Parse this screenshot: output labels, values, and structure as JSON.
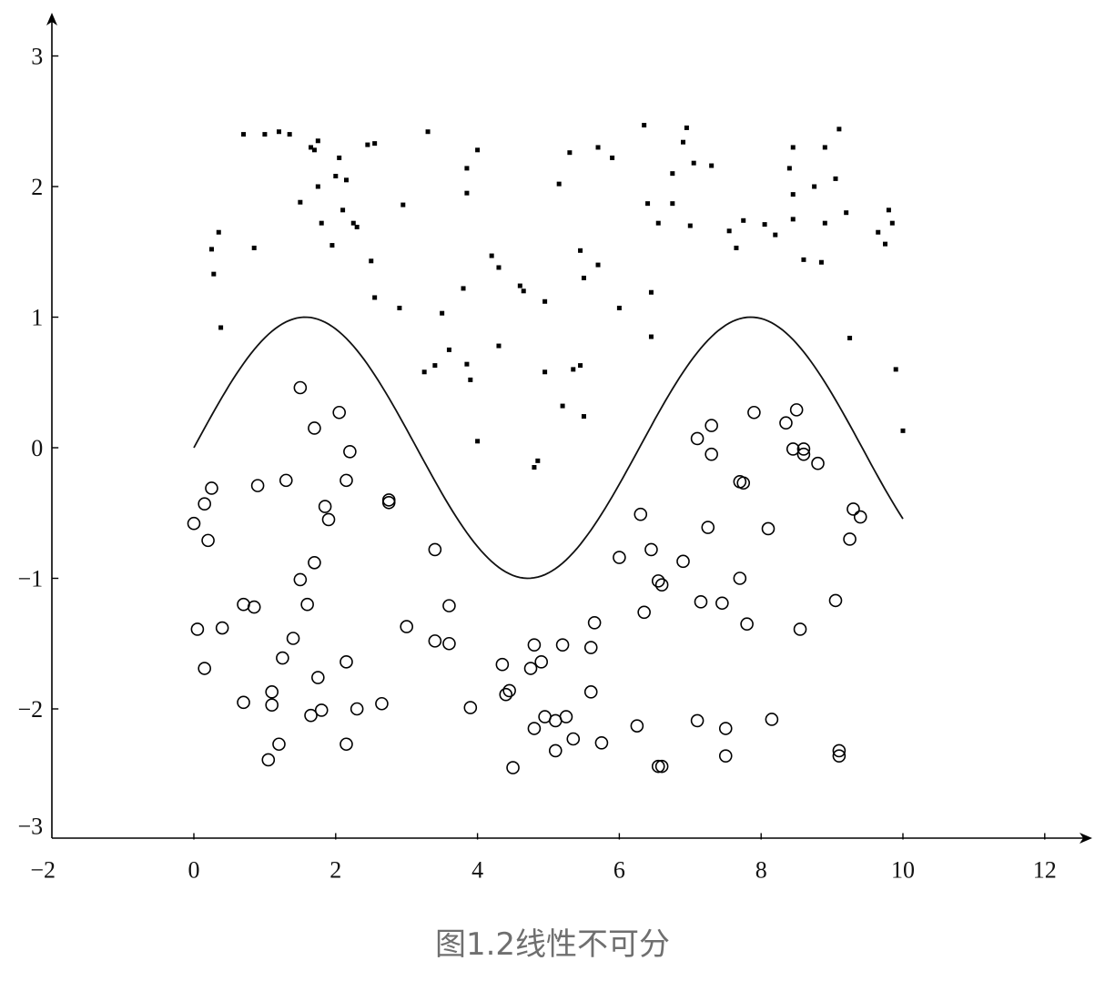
{
  "caption": "图1.2线性不可分",
  "chart_data": {
    "type": "scatter",
    "title": "",
    "xlabel": "",
    "ylabel": "",
    "xlim": [
      -2,
      13
    ],
    "ylim": [
      -3,
      3.3
    ],
    "xticks": [
      -2,
      0,
      2,
      4,
      6,
      8,
      10,
      12
    ],
    "yticks": [
      -3,
      -2,
      -1,
      0,
      1,
      2,
      3
    ],
    "xtick_labels": [
      "−2",
      "0",
      "2",
      "4",
      "6",
      "8",
      "10",
      "12"
    ],
    "ytick_labels": [
      "−3",
      "−2",
      "−1",
      "0",
      "1",
      "2",
      "3"
    ],
    "grid": false,
    "legend": "none",
    "curve": {
      "function": "sin(x)",
      "x_range": [
        0,
        10
      ]
    },
    "series": [
      {
        "marker": "filled-square",
        "points": [
          [
            0.25,
            1.52
          ],
          [
            0.35,
            1.65
          ],
          [
            0.28,
            1.33
          ],
          [
            0.38,
            0.92
          ],
          [
            0.85,
            1.53
          ],
          [
            0.7,
            2.4
          ],
          [
            1.0,
            2.4
          ],
          [
            1.2,
            2.42
          ],
          [
            1.35,
            2.4
          ],
          [
            1.65,
            2.3
          ],
          [
            1.75,
            2.35
          ],
          [
            1.7,
            2.28
          ],
          [
            1.5,
            1.88
          ],
          [
            1.75,
            2.0
          ],
          [
            1.8,
            1.72
          ],
          [
            1.95,
            1.55
          ],
          [
            2.0,
            2.08
          ],
          [
            2.05,
            2.22
          ],
          [
            2.15,
            2.05
          ],
          [
            2.1,
            1.82
          ],
          [
            2.25,
            1.72
          ],
          [
            2.3,
            1.69
          ],
          [
            2.45,
            2.32
          ],
          [
            2.55,
            2.33
          ],
          [
            2.5,
            1.43
          ],
          [
            2.55,
            1.15
          ],
          [
            2.9,
            1.07
          ],
          [
            2.95,
            1.86
          ],
          [
            3.3,
            2.42
          ],
          [
            3.25,
            0.58
          ],
          [
            3.4,
            0.63
          ],
          [
            3.5,
            1.03
          ],
          [
            3.6,
            0.75
          ],
          [
            3.8,
            1.22
          ],
          [
            3.85,
            1.95
          ],
          [
            3.85,
            2.14
          ],
          [
            3.85,
            0.64
          ],
          [
            3.9,
            0.52
          ],
          [
            4.0,
            2.28
          ],
          [
            4.0,
            0.05
          ],
          [
            4.2,
            1.47
          ],
          [
            4.3,
            1.38
          ],
          [
            4.3,
            0.78
          ],
          [
            4.6,
            1.24
          ],
          [
            4.65,
            1.2
          ],
          [
            4.8,
            -0.15
          ],
          [
            4.85,
            -0.1
          ],
          [
            4.95,
            1.12
          ],
          [
            4.95,
            0.58
          ],
          [
            5.15,
            2.02
          ],
          [
            5.2,
            0.32
          ],
          [
            5.3,
            2.26
          ],
          [
            5.35,
            0.6
          ],
          [
            5.45,
            0.63
          ],
          [
            5.45,
            1.51
          ],
          [
            5.5,
            1.3
          ],
          [
            5.5,
            0.24
          ],
          [
            5.7,
            2.3
          ],
          [
            5.7,
            1.4
          ],
          [
            5.9,
            2.22
          ],
          [
            6.0,
            1.07
          ],
          [
            6.35,
            2.47
          ],
          [
            6.4,
            1.87
          ],
          [
            6.45,
            1.19
          ],
          [
            6.45,
            0.85
          ],
          [
            6.55,
            1.72
          ],
          [
            6.75,
            1.87
          ],
          [
            6.75,
            2.1
          ],
          [
            6.9,
            2.34
          ],
          [
            6.95,
            2.45
          ],
          [
            7.0,
            1.7
          ],
          [
            7.05,
            2.18
          ],
          [
            7.3,
            2.16
          ],
          [
            7.55,
            1.66
          ],
          [
            7.65,
            1.53
          ],
          [
            7.75,
            1.74
          ],
          [
            8.05,
            1.71
          ],
          [
            8.2,
            1.63
          ],
          [
            8.4,
            2.14
          ],
          [
            8.45,
            2.3
          ],
          [
            8.45,
            1.94
          ],
          [
            8.45,
            1.75
          ],
          [
            8.6,
            1.44
          ],
          [
            8.75,
            2.0
          ],
          [
            8.85,
            1.42
          ],
          [
            8.9,
            1.72
          ],
          [
            8.9,
            2.3
          ],
          [
            9.05,
            2.06
          ],
          [
            9.1,
            2.44
          ],
          [
            9.2,
            1.8
          ],
          [
            9.25,
            0.84
          ],
          [
            9.65,
            1.65
          ],
          [
            9.75,
            1.56
          ],
          [
            9.8,
            1.82
          ],
          [
            9.85,
            1.72
          ],
          [
            9.9,
            0.6
          ],
          [
            10.0,
            0.13
          ]
        ]
      },
      {
        "marker": "open-circle",
        "points": [
          [
            0.0,
            -0.58
          ],
          [
            0.15,
            -0.43
          ],
          [
            0.2,
            -0.71
          ],
          [
            0.25,
            -0.31
          ],
          [
            0.05,
            -1.39
          ],
          [
            0.15,
            -1.69
          ],
          [
            0.4,
            -1.38
          ],
          [
            0.7,
            -1.2
          ],
          [
            0.85,
            -1.22
          ],
          [
            0.7,
            -1.95
          ],
          [
            0.9,
            -0.29
          ],
          [
            1.05,
            -2.39
          ],
          [
            1.1,
            -1.97
          ],
          [
            1.1,
            -1.87
          ],
          [
            1.2,
            -2.27
          ],
          [
            1.25,
            -1.61
          ],
          [
            1.3,
            -0.25
          ],
          [
            1.4,
            -1.46
          ],
          [
            1.5,
            -1.01
          ],
          [
            1.5,
            0.46
          ],
          [
            1.6,
            -1.2
          ],
          [
            1.65,
            -2.05
          ],
          [
            1.7,
            -0.88
          ],
          [
            1.7,
            0.15
          ],
          [
            1.75,
            -1.76
          ],
          [
            1.8,
            -2.01
          ],
          [
            1.85,
            -0.45
          ],
          [
            1.9,
            -0.55
          ],
          [
            2.05,
            0.27
          ],
          [
            2.15,
            -0.25
          ],
          [
            2.2,
            -0.03
          ],
          [
            2.15,
            -1.64
          ],
          [
            2.15,
            -2.27
          ],
          [
            2.3,
            -2.0
          ],
          [
            2.65,
            -1.96
          ],
          [
            2.75,
            -0.4
          ],
          [
            2.75,
            -0.42
          ],
          [
            3.0,
            -1.37
          ],
          [
            3.4,
            -0.78
          ],
          [
            3.4,
            -1.48
          ],
          [
            3.6,
            -1.21
          ],
          [
            3.6,
            -1.5
          ],
          [
            3.9,
            -1.99
          ],
          [
            4.35,
            -1.66
          ],
          [
            4.4,
            -1.89
          ],
          [
            4.45,
            -1.86
          ],
          [
            4.5,
            -2.45
          ],
          [
            4.75,
            -1.69
          ],
          [
            4.8,
            -1.51
          ],
          [
            4.8,
            -2.15
          ],
          [
            4.9,
            -1.64
          ],
          [
            4.95,
            -2.06
          ],
          [
            5.1,
            -2.32
          ],
          [
            5.1,
            -2.09
          ],
          [
            5.2,
            -1.51
          ],
          [
            5.25,
            -2.06
          ],
          [
            5.35,
            -2.23
          ],
          [
            5.6,
            -1.53
          ],
          [
            5.6,
            -1.87
          ],
          [
            5.65,
            -1.34
          ],
          [
            5.75,
            -2.26
          ],
          [
            6.0,
            -0.84
          ],
          [
            6.25,
            -2.13
          ],
          [
            6.3,
            -0.51
          ],
          [
            6.35,
            -1.26
          ],
          [
            6.45,
            -0.78
          ],
          [
            6.55,
            -1.02
          ],
          [
            6.6,
            -1.05
          ],
          [
            6.55,
            -2.44
          ],
          [
            6.6,
            -2.44
          ],
          [
            6.9,
            -0.87
          ],
          [
            7.1,
            0.07
          ],
          [
            7.15,
            -1.18
          ],
          [
            7.1,
            -2.09
          ],
          [
            7.25,
            -0.61
          ],
          [
            7.3,
            0.17
          ],
          [
            7.3,
            -0.05
          ],
          [
            7.45,
            -1.19
          ],
          [
            7.5,
            -2.15
          ],
          [
            7.5,
            -2.36
          ],
          [
            7.7,
            -0.26
          ],
          [
            7.75,
            -0.27
          ],
          [
            7.7,
            -1.0
          ],
          [
            7.8,
            -1.35
          ],
          [
            7.9,
            0.27
          ],
          [
            8.1,
            -0.62
          ],
          [
            8.15,
            -2.08
          ],
          [
            8.35,
            0.19
          ],
          [
            8.45,
            -0.01
          ],
          [
            8.5,
            0.29
          ],
          [
            8.55,
            -1.39
          ],
          [
            8.6,
            -0.01
          ],
          [
            8.6,
            -0.05
          ],
          [
            8.8,
            -0.12
          ],
          [
            9.05,
            -1.17
          ],
          [
            9.1,
            -2.32
          ],
          [
            9.1,
            -2.36
          ],
          [
            9.25,
            -0.7
          ],
          [
            9.3,
            -0.47
          ],
          [
            9.4,
            -0.53
          ]
        ]
      }
    ]
  }
}
